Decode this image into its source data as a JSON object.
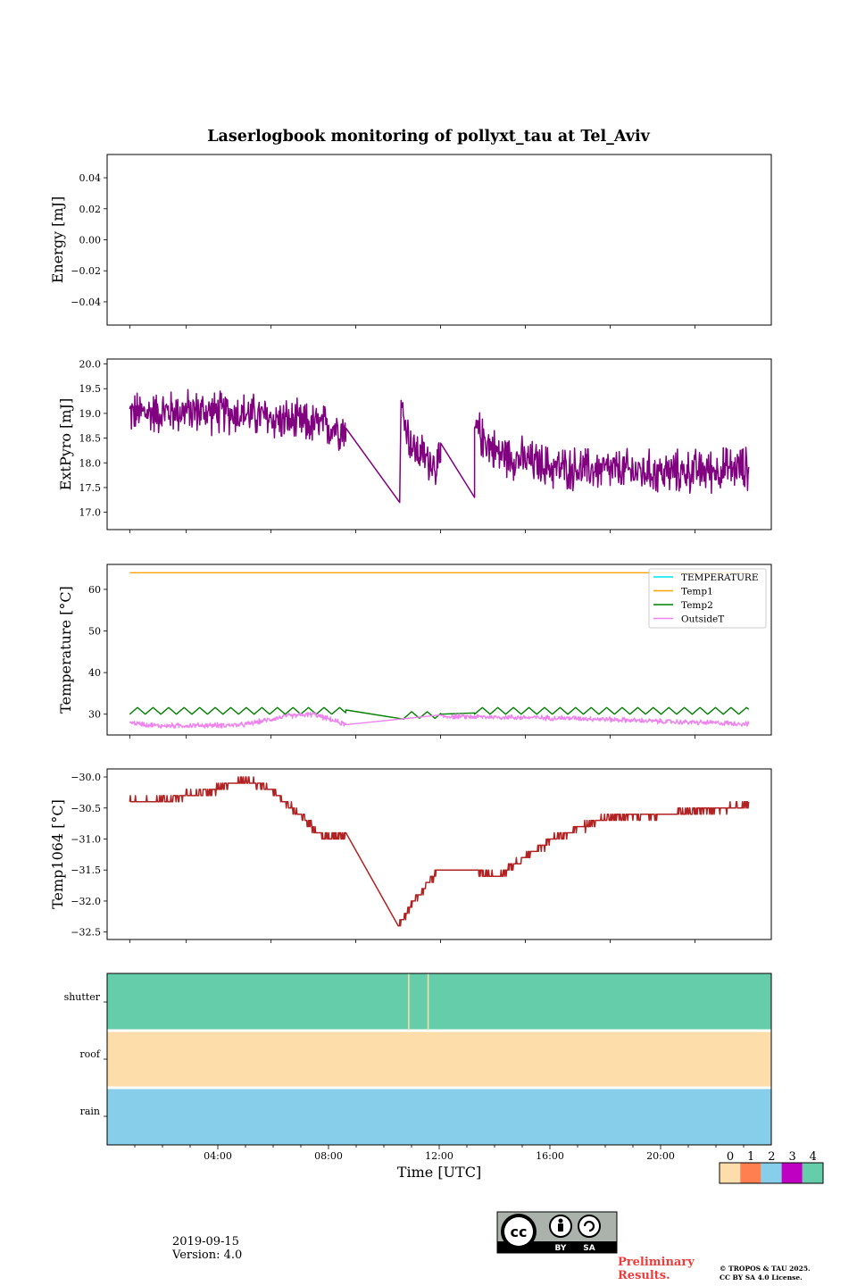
{
  "figure": {
    "title": "Laserlogbook monitoring of pollyxt_tau at Tel_Aviv",
    "date": "2019-09-15",
    "version": "Version: 4.0",
    "preliminary_line1": "Preliminary",
    "preliminary_line2": "Results.",
    "copyright_line1": "© TROPOS & TAU 2025.",
    "copyright_line2": "CC BY SA 4.0 License.",
    "license_badge": {
      "icon": "cc-by-sa-icon",
      "by": "BY",
      "sa": "SA"
    }
  },
  "chart_data": [
    {
      "type": "line",
      "panel": "energy",
      "ylabel": "Energy [mJ]",
      "ylim": [
        -0.055,
        0.055
      ],
      "yticks": [
        0.04,
        0.02,
        0.0,
        -0.02,
        -0.04
      ],
      "yticklabels": [
        "0.04",
        "0.02",
        "0.00",
        "−0.02",
        "−0.04"
      ],
      "series": []
    },
    {
      "type": "line",
      "panel": "extpyro",
      "ylabel": "ExtPyro [mJ]",
      "ylim": [
        16.65,
        20.1
      ],
      "yticks": [
        20.0,
        19.5,
        19.0,
        18.5,
        18.0,
        17.5,
        17.0
      ],
      "yticklabels": [
        "20.0",
        "19.5",
        "19.0",
        "18.5",
        "18.0",
        "17.5",
        "17.0"
      ],
      "series": [
        {
          "color": "#800080",
          "noise": 0.35,
          "segments": [
            {
              "t": [
                1.0,
                3.0,
                5.0,
                7.0,
                8.65
              ],
              "y": [
                19.0,
                19.05,
                19.0,
                18.8,
                18.7
              ]
            },
            {
              "t": [
                8.65,
                10.55
              ],
              "y": [
                18.7,
                17.2
              ],
              "noise": 0
            },
            {
              "t": [
                10.6,
                11.0,
                12.0
              ],
              "y": [
                19.1,
                18.3,
                17.9
              ]
            },
            {
              "t": [
                12.0,
                13.2
              ],
              "y": [
                18.4,
                17.3
              ],
              "noise": 0
            },
            {
              "t": [
                13.2,
                14.0,
                16.0,
                20.0,
                22.9
              ],
              "y": [
                18.7,
                18.2,
                17.9,
                17.8,
                17.9
              ]
            }
          ]
        }
      ]
    },
    {
      "type": "line",
      "panel": "temperature",
      "ylabel": "Temperature [°C]",
      "ylim": [
        25.0,
        66.0
      ],
      "yticks": [
        60,
        50,
        40,
        30
      ],
      "yticklabels": [
        "60",
        "50",
        "40",
        "30"
      ],
      "legend_loc": "upper right",
      "series": [
        {
          "name": "TEMPERATURE",
          "color": "#00e5ee",
          "segments": []
        },
        {
          "name": "Temp1",
          "color": "#ffa500",
          "segments": [
            {
              "t": [
                1.0,
                22.9
              ],
              "y": [
                64.0,
                64.0
              ]
            }
          ]
        },
        {
          "name": "Temp2",
          "color": "#008000",
          "osc": 1.8,
          "period": 0.55,
          "segments": [
            {
              "t": [
                1.0,
                8.65
              ],
              "y": [
                30.8,
                30.8
              ]
            },
            {
              "t": [
                8.65,
                10.7
              ],
              "y": [
                31.0,
                28.8
              ],
              "osc": 0
            },
            {
              "t": [
                10.7,
                12.0
              ],
              "y": [
                29.8,
                29.8
              ]
            },
            {
              "t": [
                12.0,
                13.2
              ],
              "y": [
                30.0,
                30.3
              ],
              "osc": 0
            },
            {
              "t": [
                13.2,
                22.9
              ],
              "y": [
                30.8,
                30.8
              ]
            }
          ]
        },
        {
          "name": "OutsideT",
          "color": "#ee82ee",
          "noise": 0.5,
          "segments": [
            {
              "t": [
                1.0,
                2.0,
                5.0,
                6.5,
                7.5,
                8.65
              ],
              "y": [
                28.0,
                27.2,
                27.4,
                29.5,
                30.0,
                27.5
              ]
            },
            {
              "t": [
                8.65,
                12.0
              ],
              "y": [
                27.5,
                29.8
              ],
              "noise": 0
            },
            {
              "t": [
                12.0,
                14.0,
                17.0,
                20.0,
                22.9
              ],
              "y": [
                29.5,
                29.3,
                29.0,
                28.2,
                27.7
              ]
            }
          ]
        }
      ]
    },
    {
      "type": "line",
      "panel": "temp1064",
      "ylabel": "Temp1064 [°C]",
      "ylim": [
        -32.62,
        -29.87
      ],
      "yticks": [
        -30.0,
        -30.5,
        -31.0,
        -31.5,
        -32.0,
        -32.5
      ],
      "yticklabels": [
        "−30.0",
        "−30.5",
        "−31.0",
        "−31.5",
        "−32.0",
        "−32.5"
      ],
      "series": [
        {
          "color": "#b22222",
          "step": 0.1,
          "noise": 0.05,
          "segments": [
            {
              "t": [
                1.0,
                2.5,
                4.0,
                5.0,
                6.0,
                7.0,
                7.8,
                8.65
              ],
              "y": [
                -30.4,
                -30.35,
                -30.2,
                -30.05,
                -30.2,
                -30.6,
                -30.95,
                -30.95
              ]
            },
            {
              "t": [
                8.65,
                10.5
              ],
              "y": [
                -30.9,
                -32.4
              ],
              "noise": 0,
              "nostep": true
            },
            {
              "t": [
                10.5,
                11.0,
                11.5,
                11.9
              ],
              "y": [
                -32.4,
                -32.05,
                -31.75,
                -31.5
              ]
            },
            {
              "t": [
                11.9,
                13.2
              ],
              "y": [
                -31.5,
                -31.5
              ],
              "noise": 0,
              "nostep": true
            },
            {
              "t": [
                13.2,
                14.0,
                15.0,
                16.0,
                17.0,
                18.0,
                20.0,
                22.9
              ],
              "y": [
                -31.5,
                -31.6,
                -31.3,
                -31.0,
                -30.8,
                -30.65,
                -30.6,
                -30.45
              ]
            }
          ]
        }
      ]
    },
    {
      "type": "heatmap",
      "panel": "status",
      "rows": [
        "shutter",
        "roof",
        "rain"
      ],
      "cells": [
        {
          "row": "shutter",
          "x0": 0.0,
          "x1": 24.0,
          "value": 4
        },
        {
          "row": "roof",
          "x0": 0.0,
          "x1": 24.0,
          "value": 0
        },
        {
          "row": "rain",
          "x0": 0.0,
          "x1": 24.0,
          "value": 2
        }
      ],
      "gaps": [
        {
          "row": "shutter",
          "x": 10.9
        },
        {
          "row": "shutter",
          "x": 11.6
        }
      ],
      "xlabel": "Time [UTC]",
      "xticks": [
        4,
        8,
        12,
        16,
        20
      ],
      "xticklabels": [
        "04:00",
        "08:00",
        "12:00",
        "16:00",
        "20:00"
      ],
      "colorbar": {
        "ticks": [
          "0",
          "1",
          "2",
          "3",
          "4"
        ],
        "colors": [
          "#fddeab",
          "#ff7f50",
          "#87ceeb",
          "#c000c0",
          "#66cdaa"
        ]
      }
    }
  ]
}
